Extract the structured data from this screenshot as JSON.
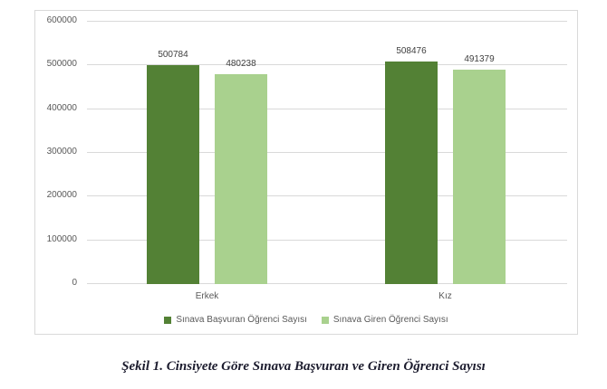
{
  "figure": {
    "caption": "Şekil 1. Cinsiyete Göre Sınava Başvuran ve Giren Öğrenci Sayısı"
  },
  "chart_data": {
    "type": "bar",
    "title": "",
    "xlabel": "",
    "ylabel": "",
    "categories": [
      "Erkek",
      "Kız"
    ],
    "series": [
      {
        "name": "Sınava Başvuran Öğrenci Sayısı",
        "color": "#538135",
        "values": [
          500784,
          508476
        ]
      },
      {
        "name": "Sınava Giren Öğrenci Sayısı",
        "color": "#a9d18e",
        "values": [
          480238,
          491379
        ]
      }
    ],
    "data_labels": [
      [
        "500784",
        "508476"
      ],
      [
        "480238",
        "491379"
      ]
    ],
    "ylim": [
      0,
      600000
    ],
    "ytick_step": 100000,
    "ytick_labels": [
      "0",
      "100000",
      "200000",
      "300000",
      "400000",
      "500000",
      "600000"
    ],
    "grid": true,
    "legend_position": "bottom",
    "colors": {
      "gridline": "#d9d9d9",
      "frame_border": "#d9d9d9",
      "tick_text": "#595959",
      "category_text": "#595959",
      "legend_text": "#595959",
      "data_label_text": "#404040",
      "caption_text": "#1c1c2e",
      "background": "#ffffff"
    }
  }
}
